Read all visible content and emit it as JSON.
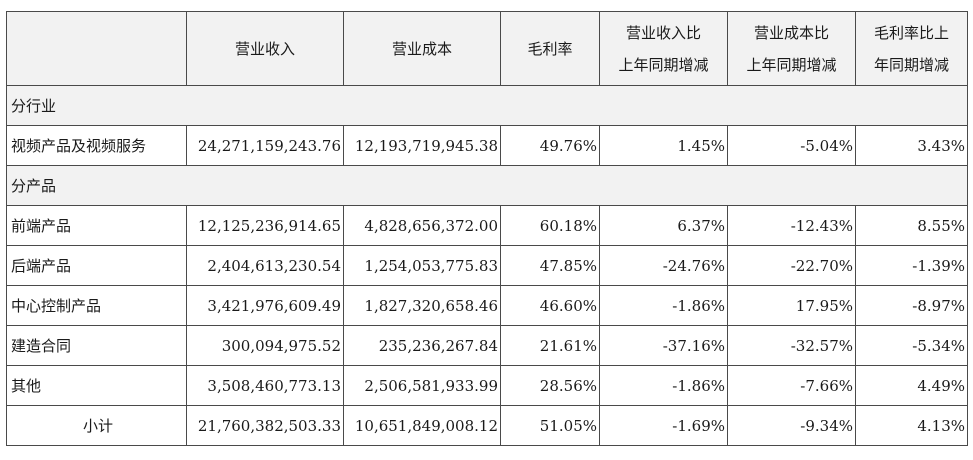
{
  "table": {
    "headers": [
      {
        "lines": [
          ""
        ]
      },
      {
        "lines": [
          "营业收入"
        ]
      },
      {
        "lines": [
          "营业成本"
        ]
      },
      {
        "lines": [
          "毛利率"
        ]
      },
      {
        "lines": [
          "营业收入比",
          "上年同期增减"
        ]
      },
      {
        "lines": [
          "营业成本比",
          "上年同期增减"
        ]
      },
      {
        "lines": [
          "毛利率比上",
          "年同期增减"
        ]
      }
    ],
    "rows": [
      {
        "type": "section",
        "label": "分行业"
      },
      {
        "type": "data",
        "cells": [
          "视频产品及视频服务",
          "24,271,159,243.76",
          "12,193,719,945.38",
          "49.76%",
          "1.45%",
          "-5.04%",
          "3.43%"
        ]
      },
      {
        "type": "section",
        "label": "分产品"
      },
      {
        "type": "data",
        "cells": [
          "前端产品",
          "12,125,236,914.65",
          "4,828,656,372.00",
          "60.18%",
          "6.37%",
          "-12.43%",
          "8.55%"
        ]
      },
      {
        "type": "data",
        "cells": [
          "后端产品",
          "2,404,613,230.54",
          "1,254,053,775.83",
          "47.85%",
          "-24.76%",
          "-22.70%",
          "-1.39%"
        ]
      },
      {
        "type": "data",
        "cells": [
          "中心控制产品",
          "3,421,976,609.49",
          "1,827,320,658.46",
          "46.60%",
          "-1.86%",
          "17.95%",
          "-8.97%"
        ]
      },
      {
        "type": "data",
        "cells": [
          "建造合同",
          "300,094,975.52",
          "235,236,267.84",
          "21.61%",
          "-37.16%",
          "-32.57%",
          "-5.34%"
        ]
      },
      {
        "type": "data",
        "cells": [
          "其他",
          "3,508,460,773.13",
          "2,506,581,933.99",
          "28.56%",
          "-1.86%",
          "-7.66%",
          "4.49%"
        ]
      },
      {
        "type": "subtotal",
        "cells": [
          "小计",
          "21,760,382,503.33",
          "10,651,849,008.12",
          "51.05%",
          "-1.69%",
          "-9.34%",
          "4.13%"
        ]
      }
    ]
  }
}
